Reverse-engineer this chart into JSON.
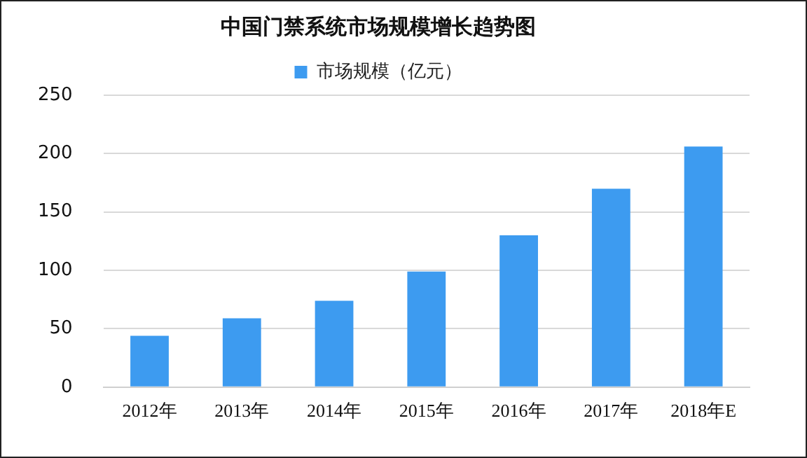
{
  "chart_data": {
    "type": "bar",
    "title": "中国门禁系统市场规模增长趋势图",
    "categories": [
      "2012年",
      "2013年",
      "2014年",
      "2015年",
      "2016年",
      "2017年",
      "2018年E"
    ],
    "series": [
      {
        "name": "市场规模（亿元）",
        "color": "#3d9bf0",
        "values": [
          44,
          59,
          74,
          99,
          130,
          170,
          206
        ]
      }
    ],
    "ylim": [
      0,
      250
    ],
    "yticks": [
      0,
      50,
      100,
      150,
      200,
      250
    ],
    "grid": "y",
    "legend": "top"
  }
}
